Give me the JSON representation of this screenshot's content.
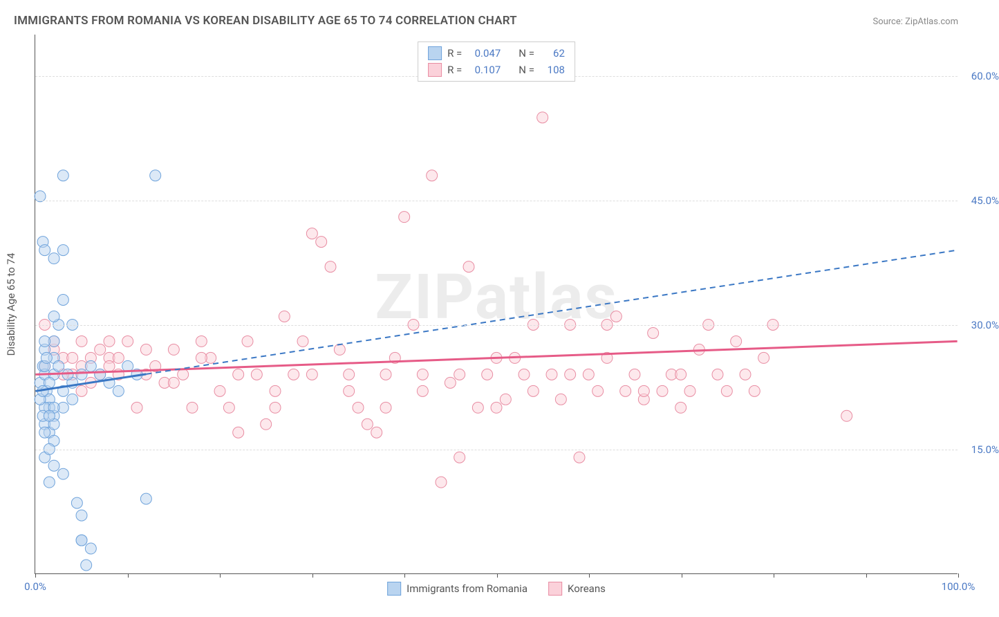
{
  "title": "IMMIGRANTS FROM ROMANIA VS KOREAN DISABILITY AGE 65 TO 74 CORRELATION CHART",
  "source": "Source: ZipAtlas.com",
  "watermark": "ZIPatlas",
  "y_axis_title": "Disability Age 65 to 74",
  "colors": {
    "series1_fill": "#b9d4f0",
    "series1_stroke": "#6fa3db",
    "series1_line": "#3a77c4",
    "series2_fill": "#fbd1da",
    "series2_stroke": "#e88ca2",
    "series2_line": "#e65b87",
    "tick_label": "#4b79c4",
    "axis_text": "#555555",
    "grid": "#dddddd"
  },
  "chart": {
    "type": "scatter",
    "xlim": [
      0,
      100
    ],
    "ylim": [
      0,
      65
    ],
    "x_ticks": [
      0,
      10,
      20,
      30,
      40,
      50,
      60,
      70,
      80,
      90,
      100
    ],
    "x_tick_labels_shown": {
      "0": "0.0%",
      "100": "100.0%"
    },
    "y_ticks": [
      15,
      30,
      45,
      60
    ],
    "y_tick_labels": [
      "15.0%",
      "30.0%",
      "45.0%",
      "60.0%"
    ],
    "marker_radius": 8,
    "marker_opacity": 0.5,
    "background": "#ffffff"
  },
  "legend_top": {
    "series": [
      {
        "r_label": "R =",
        "r_value": "0.047",
        "n_label": "N =",
        "n_value": "62"
      },
      {
        "r_label": "R =",
        "r_value": "0.107",
        "n_label": "N =",
        "n_value": "108"
      }
    ]
  },
  "legend_bottom": {
    "series1": "Immigrants from Romania",
    "series2": "Koreans"
  },
  "trend_lines": {
    "series1": {
      "x1": 0,
      "y1": 22,
      "x2": 100,
      "y2": 39,
      "style": "dashed_after",
      "dash_start_x": 12
    },
    "series2": {
      "x1": 0,
      "y1": 24,
      "x2": 100,
      "y2": 28,
      "style": "solid"
    }
  },
  "series1_points": [
    [
      0.5,
      23
    ],
    [
      0.8,
      25
    ],
    [
      1,
      27
    ],
    [
      1,
      24
    ],
    [
      1.2,
      22
    ],
    [
      1.5,
      21
    ],
    [
      1.5,
      20
    ],
    [
      2,
      26
    ],
    [
      2,
      28
    ],
    [
      2.5,
      30
    ],
    [
      0.8,
      40
    ],
    [
      1,
      39
    ],
    [
      2,
      38
    ],
    [
      0.5,
      45.5
    ],
    [
      3,
      39
    ],
    [
      3,
      48
    ],
    [
      13,
      48
    ],
    [
      3,
      33
    ],
    [
      2,
      31
    ],
    [
      4,
      30
    ],
    [
      1,
      18
    ],
    [
      1.5,
      17
    ],
    [
      2,
      16
    ],
    [
      1,
      14
    ],
    [
      2,
      13
    ],
    [
      3,
      12
    ],
    [
      1.5,
      11
    ],
    [
      4.5,
      8.5
    ],
    [
      5,
      7
    ],
    [
      5,
      4
    ],
    [
      5.5,
      1
    ],
    [
      4,
      23
    ],
    [
      5,
      24
    ],
    [
      6,
      25
    ],
    [
      7,
      24
    ],
    [
      8,
      23
    ],
    [
      9,
      22
    ],
    [
      10,
      25
    ],
    [
      11,
      24
    ],
    [
      12,
      9
    ],
    [
      3,
      22
    ],
    [
      1,
      20
    ],
    [
      2,
      19
    ],
    [
      0.5,
      21
    ],
    [
      1,
      17
    ],
    [
      1.5,
      15
    ],
    [
      2,
      18
    ],
    [
      0.8,
      19
    ],
    [
      3,
      20
    ],
    [
      4,
      21
    ],
    [
      5,
      4
    ],
    [
      6,
      3
    ],
    [
      1,
      25
    ],
    [
      2,
      24
    ],
    [
      1.5,
      23
    ],
    [
      0.8,
      22
    ],
    [
      1.2,
      26
    ],
    [
      2.5,
      25
    ],
    [
      3.5,
      24
    ],
    [
      1,
      28
    ],
    [
      2,
      20
    ],
    [
      1.5,
      19
    ]
  ],
  "series2_points": [
    [
      1,
      25
    ],
    [
      2,
      27
    ],
    [
      3,
      26
    ],
    [
      4,
      24
    ],
    [
      5,
      25
    ],
    [
      6,
      23
    ],
    [
      7,
      27
    ],
    [
      8,
      26
    ],
    [
      9,
      24
    ],
    [
      10,
      28
    ],
    [
      11,
      20
    ],
    [
      12,
      27
    ],
    [
      13,
      25
    ],
    [
      14,
      23
    ],
    [
      15,
      27
    ],
    [
      16,
      24
    ],
    [
      17,
      20
    ],
    [
      18,
      28
    ],
    [
      19,
      26
    ],
    [
      20,
      22
    ],
    [
      21,
      20
    ],
    [
      22,
      17
    ],
    [
      23,
      28
    ],
    [
      24,
      24
    ],
    [
      25,
      18
    ],
    [
      26,
      22
    ],
    [
      27,
      31
    ],
    [
      28,
      24
    ],
    [
      29,
      28
    ],
    [
      30,
      41
    ],
    [
      31,
      40
    ],
    [
      32,
      37
    ],
    [
      33,
      27
    ],
    [
      34,
      24
    ],
    [
      35,
      20
    ],
    [
      36,
      18
    ],
    [
      37,
      17
    ],
    [
      38,
      24
    ],
    [
      39,
      26
    ],
    [
      40,
      43
    ],
    [
      41,
      30
    ],
    [
      42,
      24
    ],
    [
      43,
      48
    ],
    [
      44,
      11
    ],
    [
      45,
      23
    ],
    [
      46,
      14
    ],
    [
      47,
      37
    ],
    [
      48,
      20
    ],
    [
      49,
      24
    ],
    [
      50,
      20
    ],
    [
      51,
      21
    ],
    [
      52,
      26
    ],
    [
      53,
      24
    ],
    [
      54,
      30
    ],
    [
      55,
      55
    ],
    [
      56,
      24
    ],
    [
      57,
      21
    ],
    [
      58,
      30
    ],
    [
      59,
      14
    ],
    [
      60,
      24
    ],
    [
      61,
      22
    ],
    [
      62,
      30
    ],
    [
      63,
      31
    ],
    [
      64,
      22
    ],
    [
      65,
      24
    ],
    [
      66,
      21
    ],
    [
      67,
      29
    ],
    [
      68,
      22
    ],
    [
      69,
      24
    ],
    [
      70,
      20
    ],
    [
      71,
      22
    ],
    [
      72,
      27
    ],
    [
      73,
      30
    ],
    [
      74,
      24
    ],
    [
      75,
      22
    ],
    [
      76,
      28
    ],
    [
      77,
      24
    ],
    [
      78,
      22
    ],
    [
      79,
      26
    ],
    [
      80,
      30
    ],
    [
      5,
      28
    ],
    [
      8,
      25
    ],
    [
      12,
      24
    ],
    [
      15,
      23
    ],
    [
      18,
      26
    ],
    [
      22,
      24
    ],
    [
      26,
      20
    ],
    [
      30,
      24
    ],
    [
      34,
      22
    ],
    [
      38,
      20
    ],
    [
      42,
      22
    ],
    [
      46,
      24
    ],
    [
      50,
      26
    ],
    [
      54,
      22
    ],
    [
      58,
      24
    ],
    [
      62,
      26
    ],
    [
      66,
      22
    ],
    [
      70,
      24
    ],
    [
      88,
      19
    ],
    [
      1,
      30
    ],
    [
      2,
      28
    ],
    [
      3,
      24
    ],
    [
      4,
      26
    ],
    [
      5,
      22
    ],
    [
      6,
      26
    ],
    [
      7,
      24
    ],
    [
      8,
      28
    ],
    [
      9,
      26
    ]
  ]
}
